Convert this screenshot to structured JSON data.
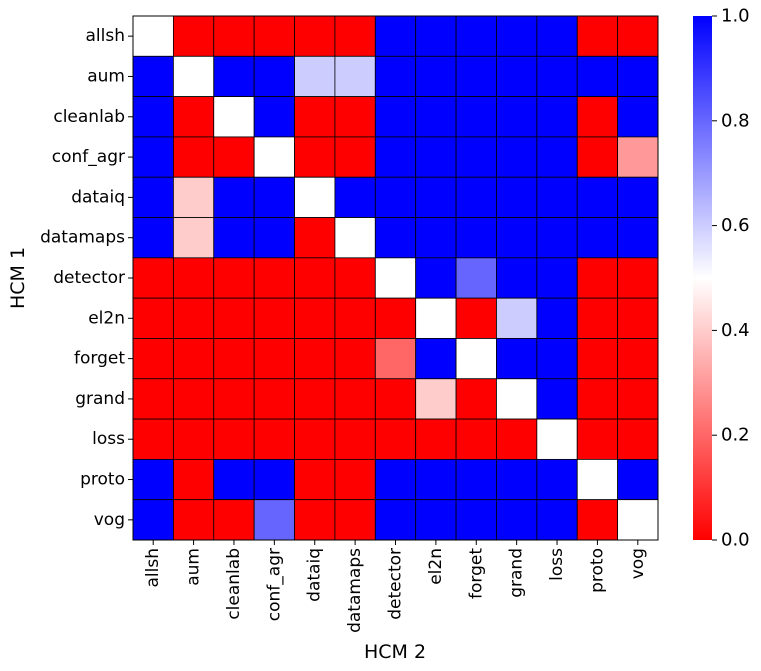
{
  "chart_data": {
    "type": "heatmap",
    "xlabel": "HCM 2",
    "ylabel": "HCM 1",
    "rows": [
      "allsh",
      "aum",
      "cleanlab",
      "conf_agr",
      "dataiq",
      "datamaps",
      "detector",
      "el2n",
      "forget",
      "grand",
      "loss",
      "proto",
      "vog"
    ],
    "cols": [
      "allsh",
      "aum",
      "cleanlab",
      "conf_agr",
      "dataiq",
      "datamaps",
      "detector",
      "el2n",
      "forget",
      "grand",
      "loss",
      "proto",
      "vog"
    ],
    "values": [
      [
        0.5,
        0,
        0,
        0,
        0,
        0,
        1,
        1,
        1,
        1,
        1,
        0,
        0
      ],
      [
        1,
        0.5,
        1,
        1,
        0.6,
        0.6,
        1,
        1,
        1,
        1,
        1,
        1,
        1
      ],
      [
        1,
        0,
        0.5,
        1,
        0,
        0,
        1,
        1,
        1,
        1,
        1,
        0,
        1
      ],
      [
        1,
        0,
        0,
        0.5,
        0,
        0,
        1,
        1,
        1,
        1,
        1,
        0,
        0.3
      ],
      [
        1,
        0.4,
        1,
        1,
        0.5,
        1,
        1,
        1,
        1,
        1,
        1,
        1,
        1
      ],
      [
        1,
        0.4,
        1,
        1,
        0,
        0.5,
        1,
        1,
        1,
        1,
        1,
        1,
        1
      ],
      [
        0,
        0,
        0,
        0,
        0,
        0,
        0.5,
        1,
        0.8,
        1,
        1,
        0,
        0
      ],
      [
        0,
        0,
        0,
        0,
        0,
        0,
        0,
        0.5,
        0,
        0.6,
        1,
        0,
        0
      ],
      [
        0,
        0,
        0,
        0,
        0,
        0,
        0.2,
        1,
        0.5,
        1,
        1,
        0,
        0
      ],
      [
        0,
        0,
        0,
        0,
        0,
        0,
        0,
        0.4,
        0,
        0.5,
        1,
        0,
        0
      ],
      [
        0,
        0,
        0,
        0,
        0,
        0,
        0,
        0,
        0,
        0,
        0.5,
        0,
        0
      ],
      [
        1,
        0,
        1,
        1,
        0,
        0,
        1,
        1,
        1,
        1,
        1,
        0.5,
        1
      ],
      [
        1,
        0,
        0,
        0.8,
        0,
        0,
        1,
        1,
        1,
        1,
        1,
        0,
        0.5
      ]
    ],
    "colorbar": {
      "range": [
        0,
        1
      ],
      "ticks": [
        "0.0",
        "0.2",
        "0.4",
        "0.6",
        "0.8",
        "1.0"
      ],
      "colors": {
        "low": "#ff0000",
        "mid": "#ffffff",
        "high": "#0000ff"
      }
    }
  }
}
